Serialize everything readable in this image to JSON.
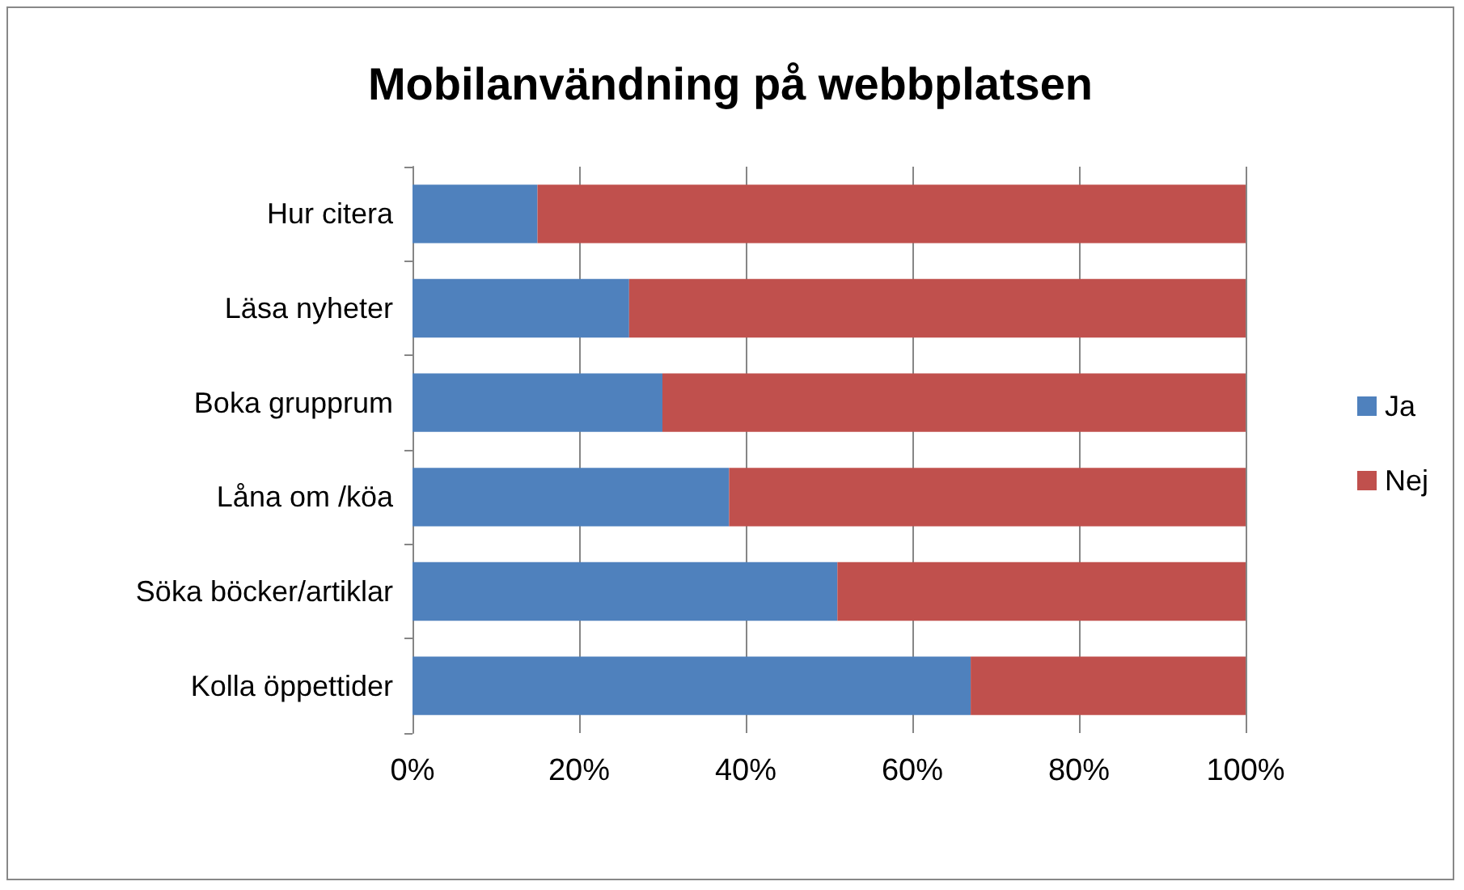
{
  "chart_data": {
    "type": "bar",
    "orientation": "horizontal",
    "stacked": true,
    "title": "Mobilanvändning på webbplatsen",
    "categories": [
      "Hur citera",
      "Läsa nyheter",
      "Boka grupprum",
      "Låna om /köa",
      "Söka böcker/artiklar",
      "Kolla öppettider"
    ],
    "series": [
      {
        "name": "Ja",
        "color": "#4f81bd",
        "values": [
          15,
          26,
          30,
          38,
          51,
          67
        ]
      },
      {
        "name": "Nej",
        "color": "#c0504d",
        "values": [
          85,
          74,
          70,
          62,
          49,
          33
        ]
      }
    ],
    "xlim": [
      0,
      100
    ],
    "xticks": [
      {
        "value": 0,
        "label": "0%"
      },
      {
        "value": 20,
        "label": "20%"
      },
      {
        "value": 40,
        "label": "40%"
      },
      {
        "value": 60,
        "label": "60%"
      },
      {
        "value": 80,
        "label": "80%"
      },
      {
        "value": 100,
        "label": "100%"
      }
    ],
    "grid": "x",
    "legend": "right"
  }
}
